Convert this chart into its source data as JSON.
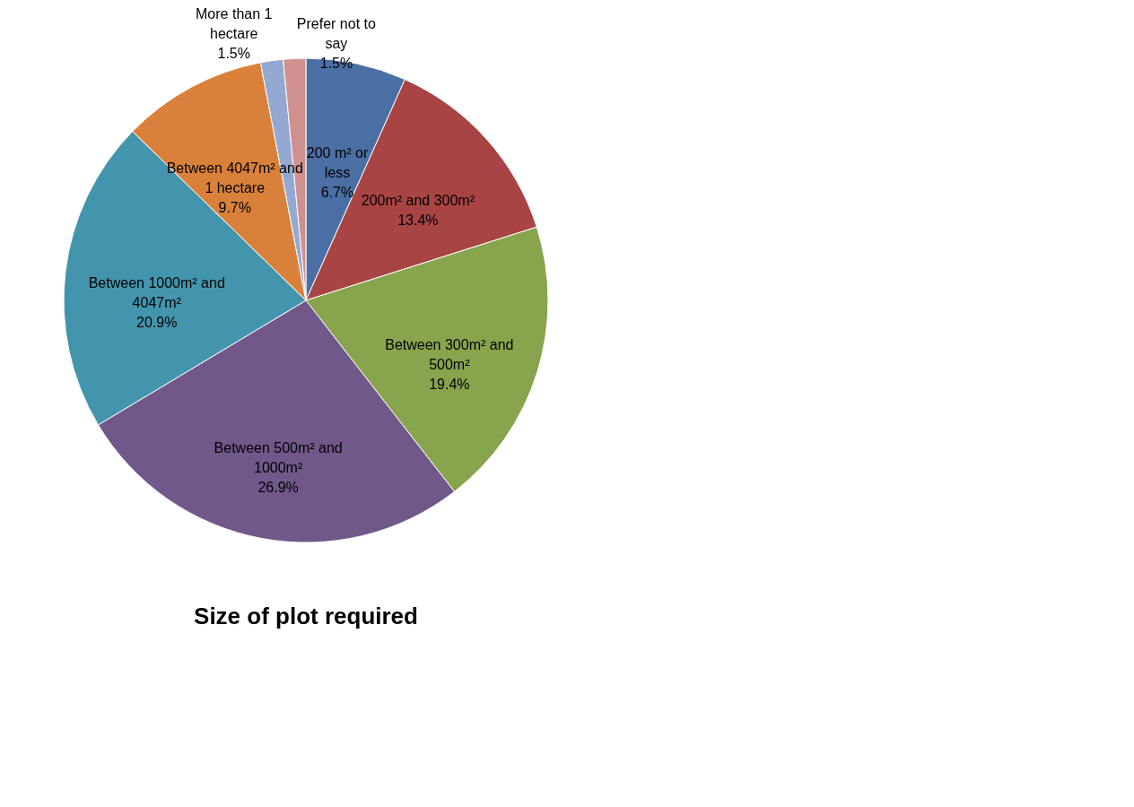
{
  "chart_data": {
    "type": "pie",
    "title": "Size of plot required",
    "categories": [
      "200 m² or less",
      "200m² and 300m²",
      "Between 300m² and 500m²",
      "Between 500m² and 1000m²",
      "Between 1000m² and 4047m²",
      "Between 4047m² and 1 hectare",
      "More than 1 hectare",
      "Prefer not to say"
    ],
    "values": [
      6.7,
      13.4,
      19.4,
      26.9,
      20.9,
      9.7,
      1.5,
      1.5
    ],
    "value_labels": [
      "6.7%",
      "13.4%",
      "19.4%",
      "26.9%",
      "20.9%",
      "9.7%",
      "1.5%",
      "1.5%"
    ],
    "colors": [
      "#4a6fa5",
      "#a84443",
      "#88a44c",
      "#70588a",
      "#4395ad",
      "#d9813b",
      "#94a9d1",
      "#d09191"
    ],
    "legend": false
  }
}
